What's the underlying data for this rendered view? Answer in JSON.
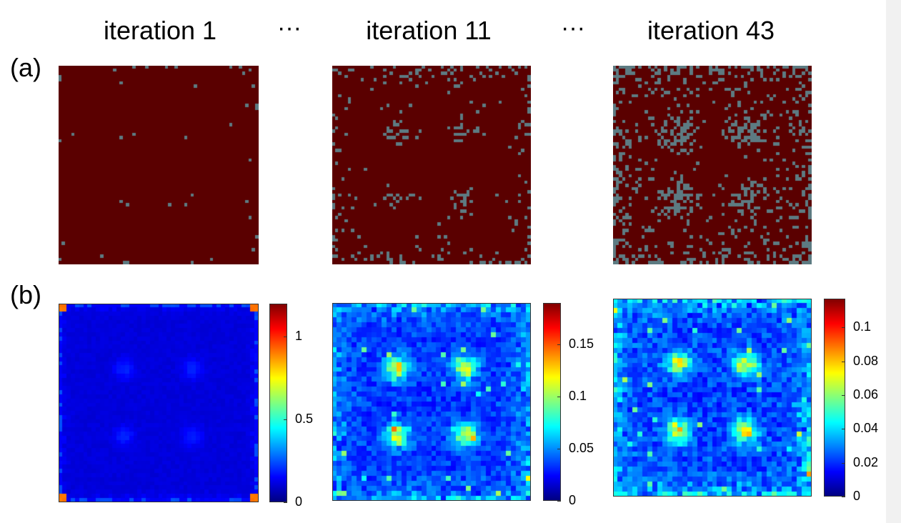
{
  "columns": [
    {
      "title": "iteration 1"
    },
    {
      "title": "iteration 11"
    },
    {
      "title": "iteration 43"
    }
  ],
  "ellipsis": [
    "···",
    "···"
  ],
  "panel_labels": {
    "a": "(a)",
    "b": "(b)"
  },
  "colors": {
    "binary_on": "#5a0000",
    "binary_off": "#5d7b82",
    "colormap": "jet"
  },
  "chart_data": [
    {
      "type": "heatmap",
      "panel": "(a)",
      "column": "iteration 1",
      "colormap": "binary",
      "seed": 11,
      "density": 0.07
    },
    {
      "type": "heatmap",
      "panel": "(a)",
      "column": "iteration 11",
      "colormap": "binary",
      "seed": 23,
      "density": 0.25
    },
    {
      "type": "heatmap",
      "panel": "(a)",
      "column": "iteration 43",
      "colormap": "binary",
      "seed": 37,
      "density": 0.5
    },
    {
      "type": "heatmap",
      "panel": "(b)",
      "column": "iteration 1",
      "colormap": "jet",
      "clim": [
        0,
        1.2
      ],
      "colorbar_ticks": [
        {
          "value": 0,
          "label": "0"
        },
        {
          "value": 0.5,
          "label": "0.5"
        },
        {
          "value": 1,
          "label": "1"
        }
      ],
      "seed": 5,
      "level": 0.15
    },
    {
      "type": "heatmap",
      "panel": "(b)",
      "column": "iteration 11",
      "colormap": "jet",
      "clim": [
        0,
        0.19
      ],
      "colorbar_ticks": [
        {
          "value": 0,
          "label": "0"
        },
        {
          "value": 0.05,
          "label": "0.05"
        },
        {
          "value": 0.1,
          "label": "0.1"
        },
        {
          "value": 0.15,
          "label": "0.15"
        }
      ],
      "seed": 13,
      "level": 0.45
    },
    {
      "type": "heatmap",
      "panel": "(b)",
      "column": "iteration 43",
      "colormap": "jet",
      "clim": [
        0,
        0.117
      ],
      "colorbar_ticks": [
        {
          "value": 0,
          "label": "0"
        },
        {
          "value": 0.02,
          "label": "0.02"
        },
        {
          "value": 0.04,
          "label": "0.04"
        },
        {
          "value": 0.06,
          "label": "0.06"
        },
        {
          "value": 0.08,
          "label": "0.08"
        },
        {
          "value": 0.1,
          "label": "0.1"
        }
      ],
      "seed": 29,
      "level": 0.55
    }
  ]
}
